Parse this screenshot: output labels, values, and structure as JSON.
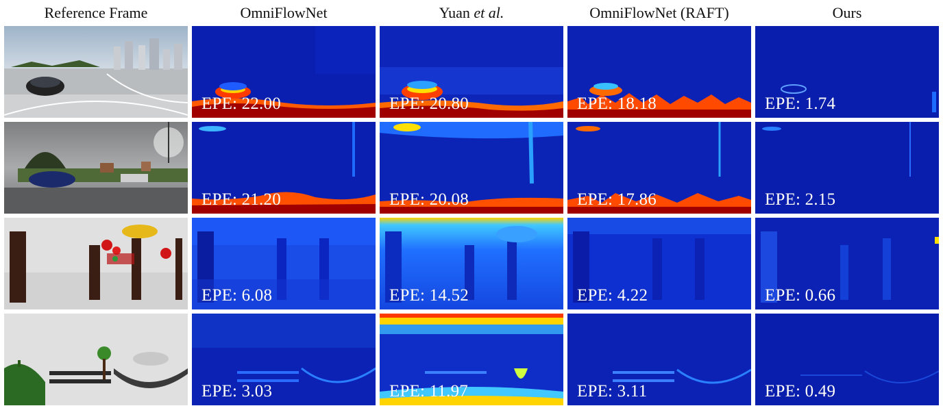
{
  "columns": [
    {
      "title": "Reference Frame"
    },
    {
      "title": "OmniFlowNet"
    },
    {
      "title": "Yuan ",
      "title_em": "et al."
    },
    {
      "title": "OmniFlowNet (RAFT)"
    },
    {
      "title": "Ours"
    }
  ],
  "rows": [
    {
      "scene": "street-city",
      "epe": [
        "EPE: 22.00",
        "EPE: 20.80",
        "EPE: 18.18",
        "EPE: 1.74"
      ]
    },
    {
      "scene": "suburb-car",
      "epe": [
        "EPE: 21.20",
        "EPE: 20.08",
        "EPE: 17.86",
        "EPE: 2.15"
      ]
    },
    {
      "scene": "cartoon-forest",
      "epe": [
        "EPE: 6.08",
        "EPE: 14.52",
        "EPE: 4.22",
        "EPE: 0.66"
      ]
    },
    {
      "scene": "cartoon-fence",
      "epe": [
        "EPE: 3.03",
        "EPE: 11.97",
        "EPE: 3.11",
        "EPE: 0.49"
      ]
    }
  ],
  "colors": {
    "flow_low": "#0a1fb0",
    "flow_mid": "#1e5cff",
    "flow_high_red": "#a00000",
    "flow_warm": "#ff3a00",
    "background": "#ffffff"
  }
}
